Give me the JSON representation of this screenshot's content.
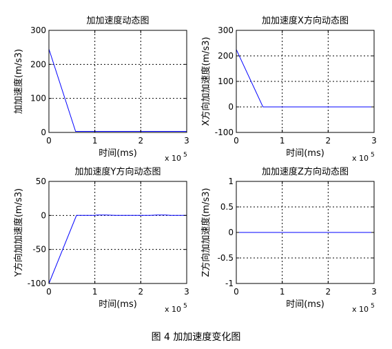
{
  "figure": {
    "caption": "图 4  加加速度变化图",
    "colors": {
      "line": "#0000ff",
      "axes": "#000000",
      "grid": "#000000",
      "background": "#ffffff"
    }
  },
  "chart_data": [
    {
      "type": "line",
      "title": "加加速度动态图",
      "xlabel": "时间(ms)",
      "ylabel": "加加速度(m/s3)",
      "x_multiplier": "x 10",
      "x_multiplier_exp": "5",
      "xlim": [
        0,
        3
      ],
      "ylim": [
        0,
        300
      ],
      "xticks": [
        "0",
        "1",
        "2",
        "3"
      ],
      "yticks": [
        "0",
        "100",
        "200",
        "300"
      ],
      "grid": true,
      "series": [
        {
          "x": [
            0,
            0.58,
            3
          ],
          "y": [
            245,
            3,
            3
          ]
        }
      ]
    },
    {
      "type": "line",
      "title": "加加速度X方向动态图",
      "xlabel": "时间(ms)",
      "ylabel": "X方向加加速度(m/s3)",
      "x_multiplier": "x 10",
      "x_multiplier_exp": "5",
      "xlim": [
        0,
        3
      ],
      "ylim": [
        -100,
        300
      ],
      "xticks": [
        "0",
        "1",
        "2",
        "3"
      ],
      "yticks": [
        "-100",
        "0",
        "100",
        "200",
        "300"
      ],
      "grid": true,
      "series": [
        {
          "x": [
            0,
            0.58,
            3
          ],
          "y": [
            225,
            0,
            0
          ]
        }
      ]
    },
    {
      "type": "line",
      "title": "加加速度Y方向动态图",
      "xlabel": "时间(ms)",
      "ylabel": "Y方向加加速度(m/s3)",
      "x_multiplier": "x 10",
      "x_multiplier_exp": "5",
      "xlim": [
        0,
        3
      ],
      "ylim": [
        -100,
        50
      ],
      "xticks": [
        "0",
        "1",
        "2",
        "3"
      ],
      "yticks": [
        "-100",
        "-50",
        "0",
        "50"
      ],
      "grid": true,
      "series": [
        {
          "x": [
            0,
            0.6,
            1.0,
            1.05,
            1.25,
            1.35,
            1.45,
            1.6,
            2.0,
            2.2,
            2.35,
            2.55,
            2.65,
            2.8,
            3.0
          ],
          "y": [
            -100,
            0,
            0,
            0.6,
            0.6,
            0.3,
            0,
            0,
            0,
            0,
            0.5,
            0.5,
            0,
            0,
            0
          ]
        }
      ]
    },
    {
      "type": "line",
      "title": "加加速度Z方向动态图",
      "xlabel": "时间(ms)",
      "ylabel": "Z方向加加速度(m/s3)",
      "x_multiplier": "x 10",
      "x_multiplier_exp": "5",
      "xlim": [
        0,
        3
      ],
      "ylim": [
        -1,
        1
      ],
      "xticks": [
        "0",
        "1",
        "2",
        "3"
      ],
      "yticks": [
        "-1",
        "-0.5",
        "0",
        "0.5",
        "1"
      ],
      "grid": true,
      "series": [
        {
          "x": [
            0,
            3
          ],
          "y": [
            0,
            0
          ]
        }
      ]
    }
  ]
}
